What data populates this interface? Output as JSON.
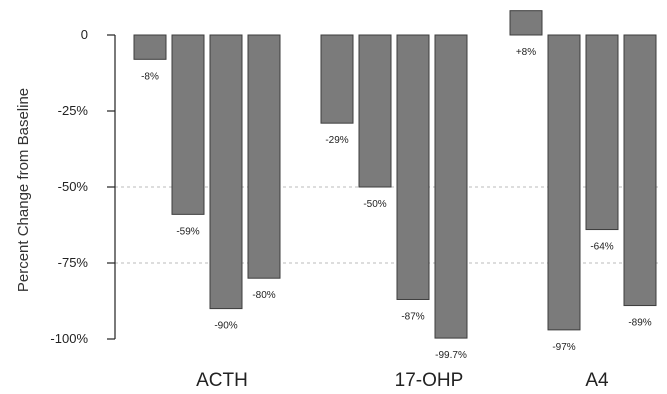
{
  "chart_data": {
    "type": "bar",
    "title": "",
    "xlabel": "",
    "ylabel": "Percent Change from Baseline",
    "ylim": [
      -100,
      0
    ],
    "y_ticks": [
      {
        "value": 0,
        "label": "0"
      },
      {
        "value": -25,
        "label": "-25%"
      },
      {
        "value": -50,
        "label": "-50%"
      },
      {
        "value": -75,
        "label": "-75%"
      },
      {
        "value": -100,
        "label": "-100%"
      }
    ],
    "gridlines": [
      -50,
      -75
    ],
    "categories": [
      "ACTH",
      "17-OHP",
      "A4"
    ],
    "groups": [
      {
        "category": "ACTH",
        "bars": [
          {
            "value": -8,
            "label": "-8%"
          },
          {
            "value": -59,
            "label": "-59%"
          },
          {
            "value": -90,
            "label": "-90%"
          },
          {
            "value": -80,
            "label": "-80%"
          }
        ]
      },
      {
        "category": "17-OHP",
        "bars": [
          {
            "value": -29,
            "label": "-29%"
          },
          {
            "value": -50,
            "label": "-50%"
          },
          {
            "value": -87,
            "label": "-87%"
          },
          {
            "value": -99.7,
            "label": "-99.7%"
          }
        ]
      },
      {
        "category": "A4",
        "bars": [
          {
            "value": 8,
            "label": "+8%"
          },
          {
            "value": -97,
            "label": "-97%"
          },
          {
            "value": -64,
            "label": "-64%"
          },
          {
            "value": -89,
            "label": "-89%"
          }
        ]
      }
    ],
    "colors": {
      "bar_fill": "#7b7b7b",
      "bar_stroke": "#3c3c3c",
      "axis": "#222222",
      "grid": "#bbbbbb"
    }
  }
}
